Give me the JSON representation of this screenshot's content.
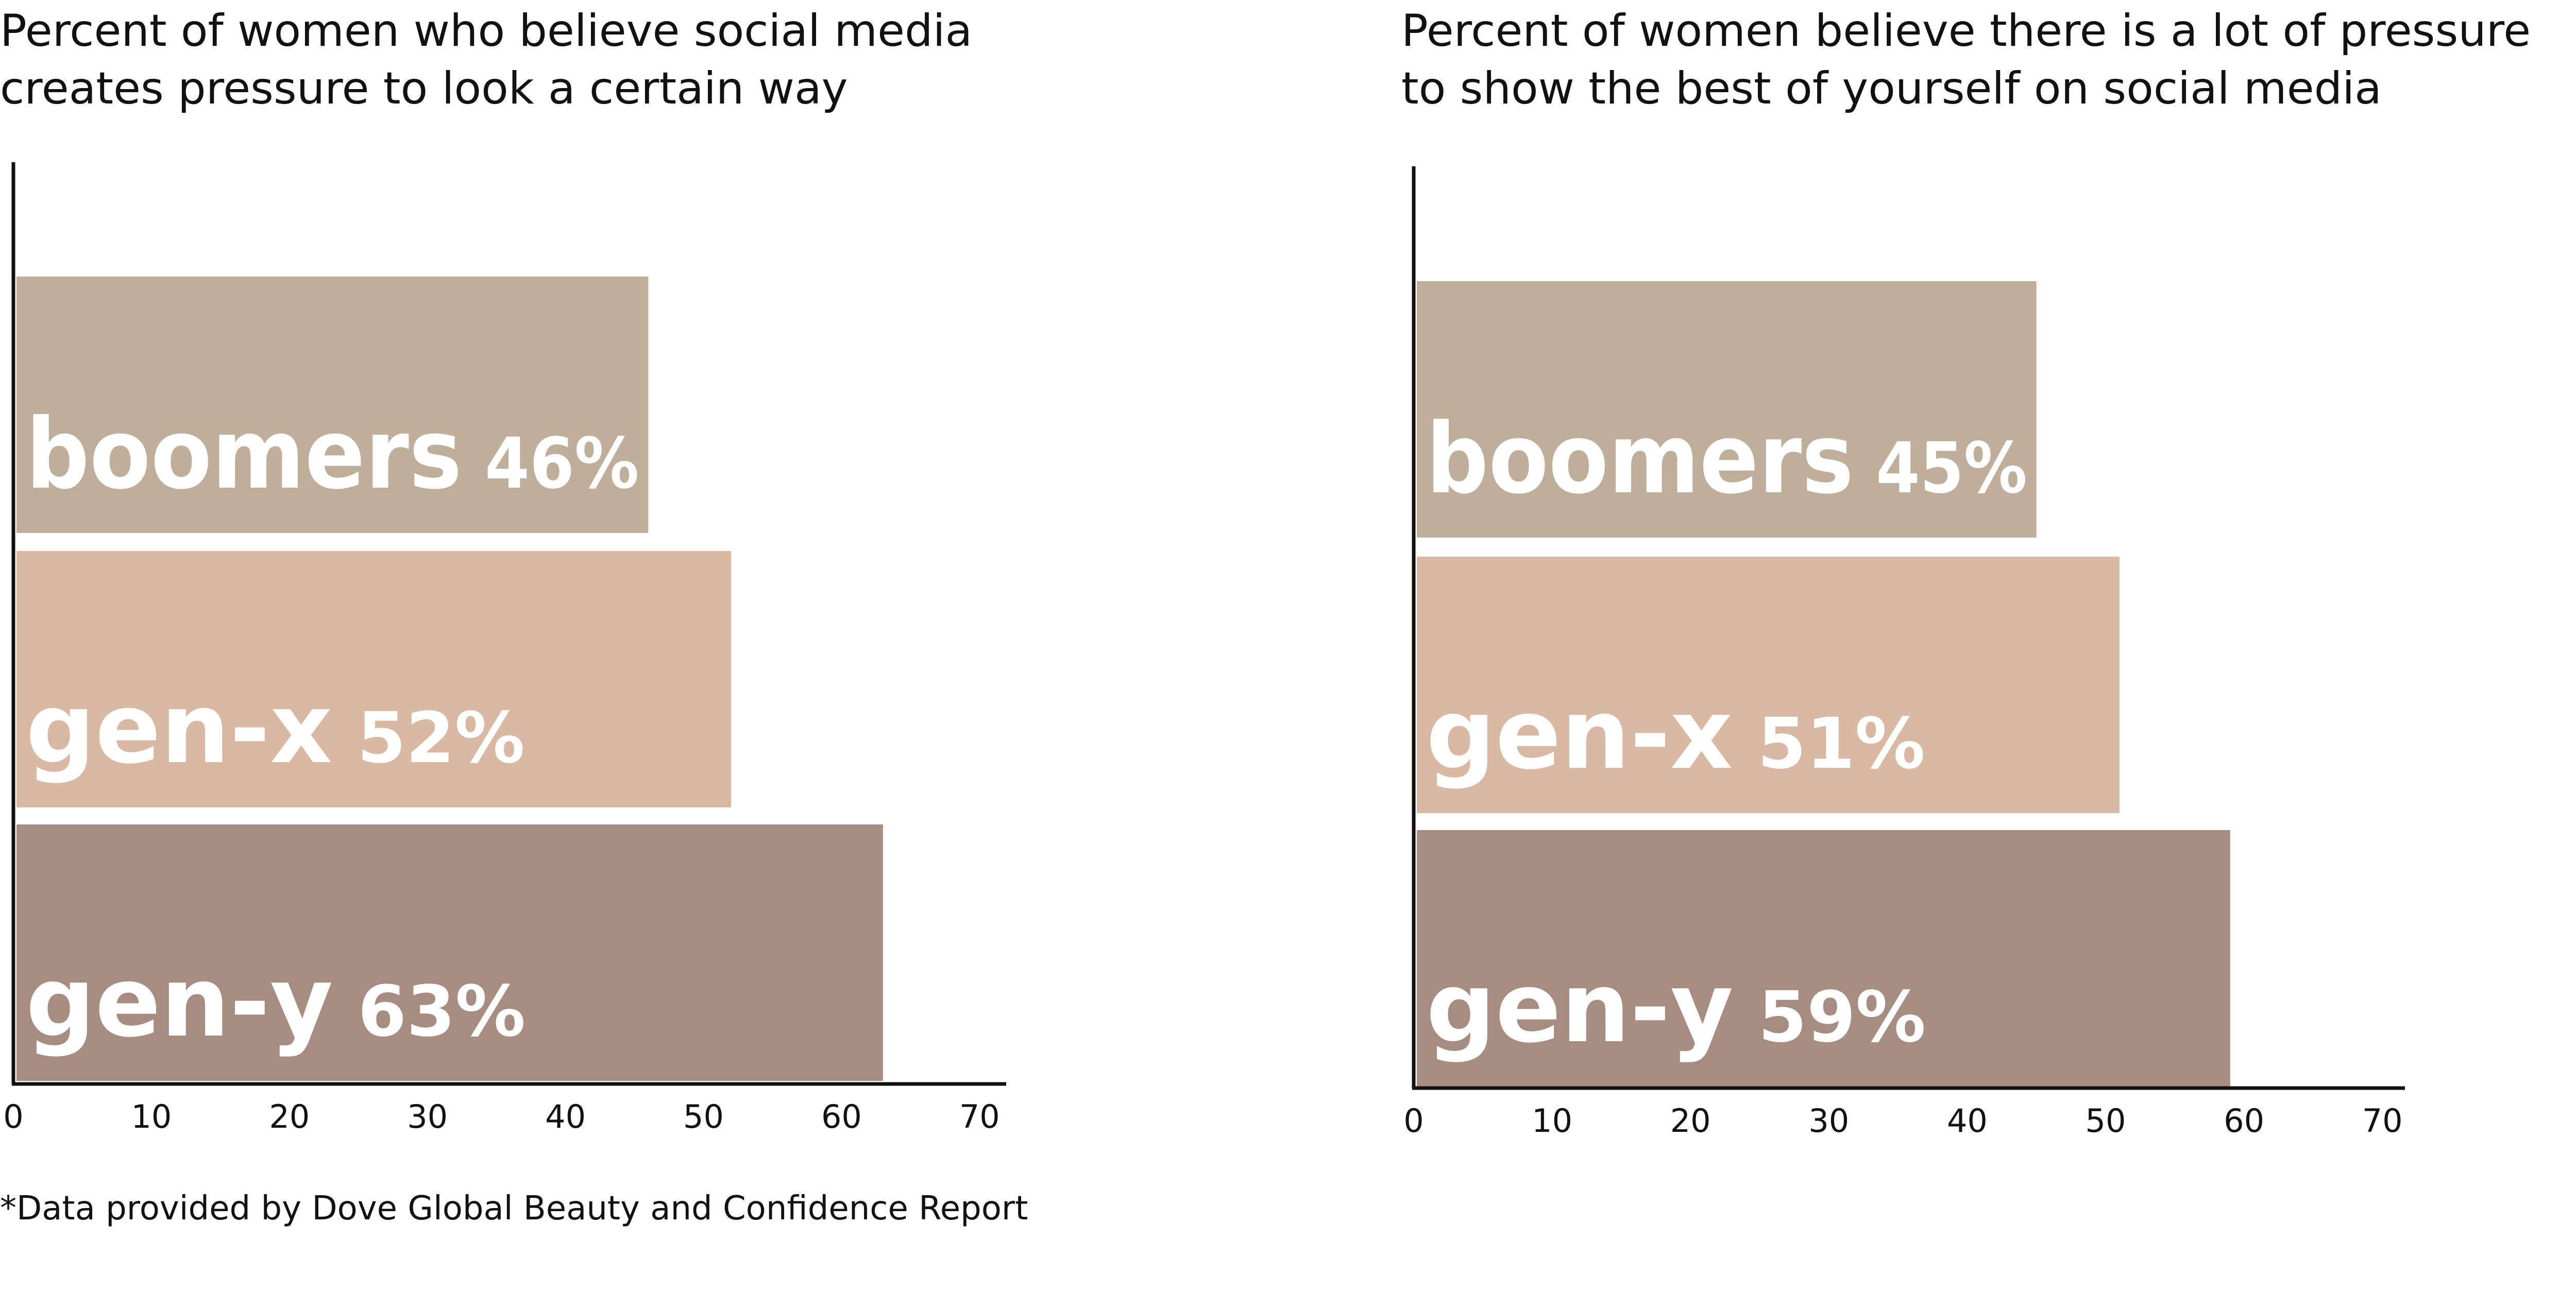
{
  "chart_data": [
    {
      "type": "bar",
      "orientation": "horizontal",
      "title_lines": [
        "Percent of women who believe social media",
        "creates pressure to look a certain way"
      ],
      "categories": [
        "boomers",
        "gen-x",
        "gen-y"
      ],
      "values": [
        46,
        52,
        63
      ],
      "value_labels": [
        "46%",
        "52%",
        "63%"
      ],
      "colors": [
        "#bfae9a",
        "#d9b9a4",
        "#a78c82"
      ],
      "xlim": [
        0,
        70
      ],
      "xticks": [
        0,
        10,
        20,
        30,
        40,
        50,
        60,
        70
      ],
      "grid": false,
      "legend": "none"
    },
    {
      "type": "bar",
      "orientation": "horizontal",
      "title_lines": [
        "Percent of women believe there is a lot of pressure",
        "to show the best of yourself on social media"
      ],
      "categories": [
        "boomers",
        "gen-x",
        "gen-y"
      ],
      "values": [
        45,
        51,
        59
      ],
      "value_labels": [
        "45%",
        "51%",
        "59%"
      ],
      "colors": [
        "#bfae9a",
        "#d9b9a4",
        "#a78c82"
      ],
      "xlim": [
        0,
        70
      ],
      "xticks": [
        0,
        10,
        20,
        30,
        40,
        50,
        60,
        70
      ],
      "grid": false,
      "legend": "none"
    }
  ],
  "footnote": "*Data provided by Dove Global Beauty and Confidence Report",
  "axis_color": "#111111"
}
